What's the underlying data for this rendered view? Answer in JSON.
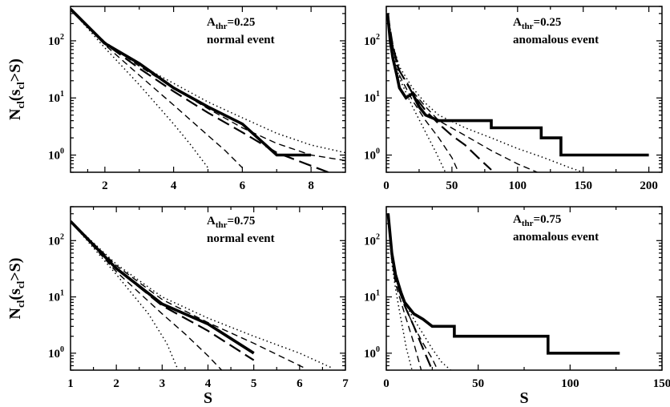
{
  "chart_data": [
    {
      "type": "line",
      "xlabel": "",
      "ylabel": "N_cl(s_cl>S)",
      "xlim": [
        1,
        9
      ],
      "ylim": [
        0.5,
        400
      ],
      "y_scale": "log",
      "x_ticks": [
        2,
        4,
        6,
        8
      ],
      "x_tick_labels": [
        "2",
        "4",
        "6",
        "8"
      ],
      "annotation": {
        "prefix": "A",
        "sub": "thr",
        "value": "=0.25",
        "event": "normal event"
      },
      "series": [
        {
          "style": "thick-solid",
          "x": [
            1,
            2,
            3,
            4,
            5,
            6,
            7,
            8
          ],
          "y": [
            360,
            90,
            40,
            15,
            7,
            3.5,
            1,
            1
          ]
        },
        {
          "style": "long-dash",
          "x": [
            1,
            2,
            3,
            4,
            5,
            6,
            7,
            8.5
          ],
          "y": [
            360,
            90,
            33,
            13,
            5.5,
            2.5,
            1.1,
            0.5
          ]
        },
        {
          "style": "dotted-upper",
          "x": [
            1,
            2,
            3,
            4,
            5,
            6,
            7,
            8,
            9
          ],
          "y": [
            360,
            95,
            38,
            18,
            8.5,
            4.5,
            2.4,
            1.5,
            1.1
          ]
        },
        {
          "style": "dash-upper",
          "x": [
            1,
            2,
            3,
            4,
            5,
            6,
            7,
            8,
            9
          ],
          "y": [
            360,
            95,
            36,
            15,
            6.5,
            3,
            1.6,
            1.0,
            0.8
          ]
        },
        {
          "style": "dash-lower",
          "x": [
            1,
            2,
            3,
            4,
            5,
            5.5,
            6
          ],
          "y": [
            360,
            85,
            25,
            7.5,
            2.2,
            1.2,
            0.6
          ]
        },
        {
          "style": "dotted-lower",
          "x": [
            1,
            2,
            3,
            4,
            4.5,
            5
          ],
          "y": [
            360,
            75,
            17,
            3.5,
            1.5,
            0.6
          ]
        }
      ]
    },
    {
      "type": "line",
      "xlabel": "",
      "ylabel": "",
      "xlim": [
        0,
        210
      ],
      "ylim": [
        0.5,
        400
      ],
      "y_scale": "log",
      "x_ticks": [
        0,
        50,
        100,
        150,
        200
      ],
      "x_tick_labels": [
        "0",
        "50",
        "100",
        "150",
        "200"
      ],
      "annotation": {
        "prefix": "A",
        "sub": "thr",
        "value": "=0.25",
        "event": "anomalous event"
      },
      "series": [
        {
          "style": "thick-solid",
          "x": [
            1,
            3,
            5,
            8,
            10,
            15,
            20,
            25,
            30,
            40,
            80,
            80,
            118,
            118,
            133,
            133,
            200
          ],
          "y": [
            300,
            100,
            50,
            25,
            15,
            10,
            12,
            7,
            5,
            4,
            4,
            3,
            3,
            2,
            2,
            1,
            1
          ]
        },
        {
          "style": "long-dash",
          "x": [
            1,
            5,
            10,
            20,
            30,
            40,
            50,
            60,
            70,
            80
          ],
          "y": [
            300,
            80,
            30,
            12,
            6,
            3.5,
            2.2,
            1.5,
            0.9,
            0.55
          ]
        },
        {
          "style": "dotted-upper",
          "x": [
            1,
            5,
            10,
            20,
            30,
            40,
            60,
            80,
            100,
            120,
            140,
            150
          ],
          "y": [
            300,
            85,
            35,
            15,
            8,
            5,
            3,
            2,
            1.3,
            0.9,
            0.6,
            0.5
          ]
        },
        {
          "style": "dash-upper",
          "x": [
            1,
            5,
            10,
            20,
            30,
            40,
            60,
            80,
            100,
            115
          ],
          "y": [
            300,
            80,
            30,
            13,
            7,
            4,
            2.2,
            1.2,
            0.7,
            0.5
          ]
        },
        {
          "style": "dash-lower",
          "x": [
            1,
            5,
            10,
            20,
            30,
            40,
            50,
            55
          ],
          "y": [
            300,
            75,
            25,
            9,
            4,
            2,
            0.9,
            0.5
          ]
        },
        {
          "style": "dotted-lower",
          "x": [
            1,
            5,
            10,
            20,
            30,
            38,
            45
          ],
          "y": [
            300,
            70,
            22,
            7,
            2.5,
            1.1,
            0.5
          ]
        }
      ]
    },
    {
      "type": "line",
      "xlabel": "S",
      "ylabel": "N_cl(s_cl>S)",
      "xlim": [
        1,
        7
      ],
      "ylim": [
        0.5,
        400
      ],
      "y_scale": "log",
      "x_ticks": [
        1,
        2,
        3,
        4,
        5,
        6,
        7
      ],
      "x_tick_labels": [
        "1",
        "2",
        "3",
        "4",
        "5",
        "6",
        "7"
      ],
      "annotation": {
        "prefix": "A",
        "sub": "thr",
        "value": "=0.75",
        "event": "normal event"
      },
      "series": [
        {
          "style": "thick-solid",
          "x": [
            1,
            2,
            3,
            4,
            5
          ],
          "y": [
            220,
            32,
            7.5,
            3.3,
            1.0
          ]
        },
        {
          "style": "long-dash",
          "x": [
            1,
            2,
            3,
            4,
            5
          ],
          "y": [
            220,
            32,
            7,
            2.5,
            0.75
          ]
        },
        {
          "style": "dotted-upper",
          "x": [
            1,
            2,
            3,
            4,
            5,
            6,
            6.7
          ],
          "y": [
            220,
            38,
            10,
            4.2,
            2,
            1.0,
            0.55
          ]
        },
        {
          "style": "dash-upper",
          "x": [
            1,
            2,
            3,
            4,
            5,
            6.1
          ],
          "y": [
            220,
            36,
            9,
            3.5,
            1.5,
            0.55
          ]
        },
        {
          "style": "dash-lower",
          "x": [
            1,
            2,
            3,
            3.5,
            4,
            4.3
          ],
          "y": [
            220,
            28,
            5,
            2.2,
            0.9,
            0.5
          ]
        },
        {
          "style": "dotted-lower",
          "x": [
            1,
            2,
            2.7,
            3.1,
            3.35
          ],
          "y": [
            220,
            25,
            5,
            1.5,
            0.5
          ]
        }
      ]
    },
    {
      "type": "line",
      "xlabel": "S",
      "ylabel": "",
      "xlim": [
        0,
        150
      ],
      "ylim": [
        0.5,
        400
      ],
      "y_scale": "log",
      "x_ticks": [
        0,
        50,
        100,
        150
      ],
      "x_tick_labels": [
        "0",
        "50",
        "100",
        "150"
      ],
      "annotation": {
        "prefix": "A",
        "sub": "thr",
        "value": "=0.75",
        "event": "anomalous event"
      },
      "series": [
        {
          "style": "thick-solid",
          "x": [
            1,
            3,
            5,
            8,
            10,
            15,
            20,
            25,
            30,
            37,
            37,
            88,
            88,
            127
          ],
          "y": [
            300,
            60,
            25,
            12,
            8,
            5,
            4,
            3,
            3,
            3,
            2,
            2,
            1,
            1
          ]
        },
        {
          "style": "long-dash",
          "x": [
            1,
            3,
            5,
            10,
            15,
            20,
            25
          ],
          "y": [
            300,
            50,
            20,
            7,
            3,
            1.2,
            0.5
          ]
        },
        {
          "style": "dotted-upper",
          "x": [
            1,
            3,
            5,
            10,
            15,
            20,
            25,
            30,
            35
          ],
          "y": [
            300,
            55,
            22,
            8,
            4,
            2.2,
            1.2,
            0.7,
            0.5
          ]
        },
        {
          "style": "dash-upper",
          "x": [
            1,
            3,
            5,
            10,
            15,
            20,
            25,
            28
          ],
          "y": [
            300,
            50,
            20,
            7,
            3,
            1.5,
            0.8,
            0.5
          ]
        },
        {
          "style": "dash-lower",
          "x": [
            1,
            3,
            5,
            10,
            15,
            19
          ],
          "y": [
            300,
            45,
            17,
            5,
            1.5,
            0.5
          ]
        },
        {
          "style": "dotted-lower",
          "x": [
            1,
            3,
            5,
            8,
            11,
            14
          ],
          "y": [
            300,
            40,
            14,
            4,
            1.2,
            0.5
          ]
        }
      ]
    }
  ]
}
